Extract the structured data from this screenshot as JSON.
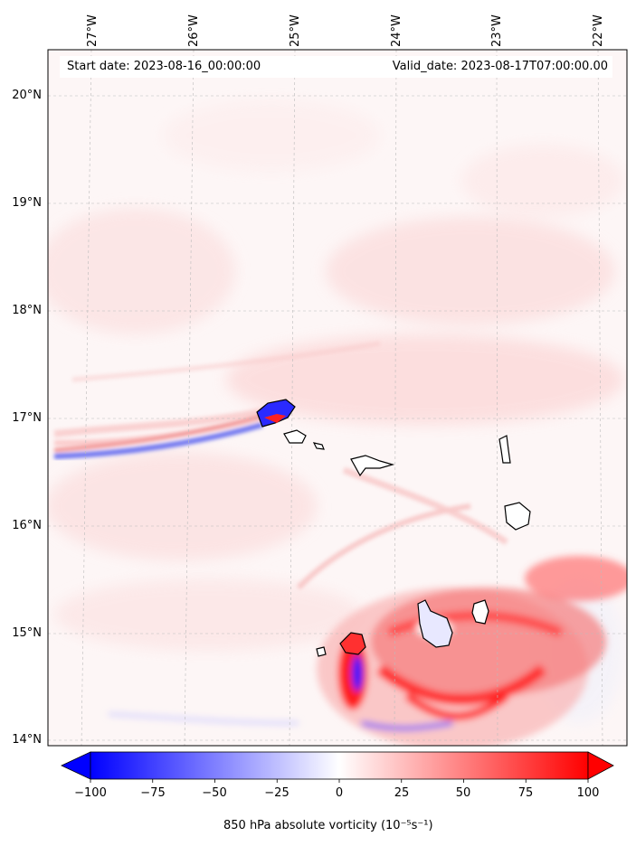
{
  "header": {
    "start_date": "Start date: 2023-08-16_00:00:00",
    "valid_date": "Valid_date: 2023-08-17T07:00:00.00"
  },
  "axes": {
    "longitude_labels": [
      "27°W",
      "26°W",
      "25°W",
      "24°W",
      "23°W",
      "22°W"
    ],
    "latitude_labels": [
      "20°N",
      "19°N",
      "18°N",
      "17°N",
      "16°N",
      "15°N",
      "14°N"
    ]
  },
  "colorbar": {
    "ticks": [
      "−100",
      "−75",
      "−50",
      "−25",
      "0",
      "25",
      "50",
      "75",
      "100"
    ],
    "label": "850 hPa absolute vorticity",
    "unit": "(10⁻⁵s⁻¹)",
    "min": -100,
    "max": 100,
    "negative_color": "#0000ff",
    "positive_color": "#ff0000",
    "extend": "both"
  },
  "colors": {
    "positive": "#ff0000",
    "negative": "#0000ff",
    "coastline": "#000000",
    "gridline": "#bbbbbb"
  }
}
